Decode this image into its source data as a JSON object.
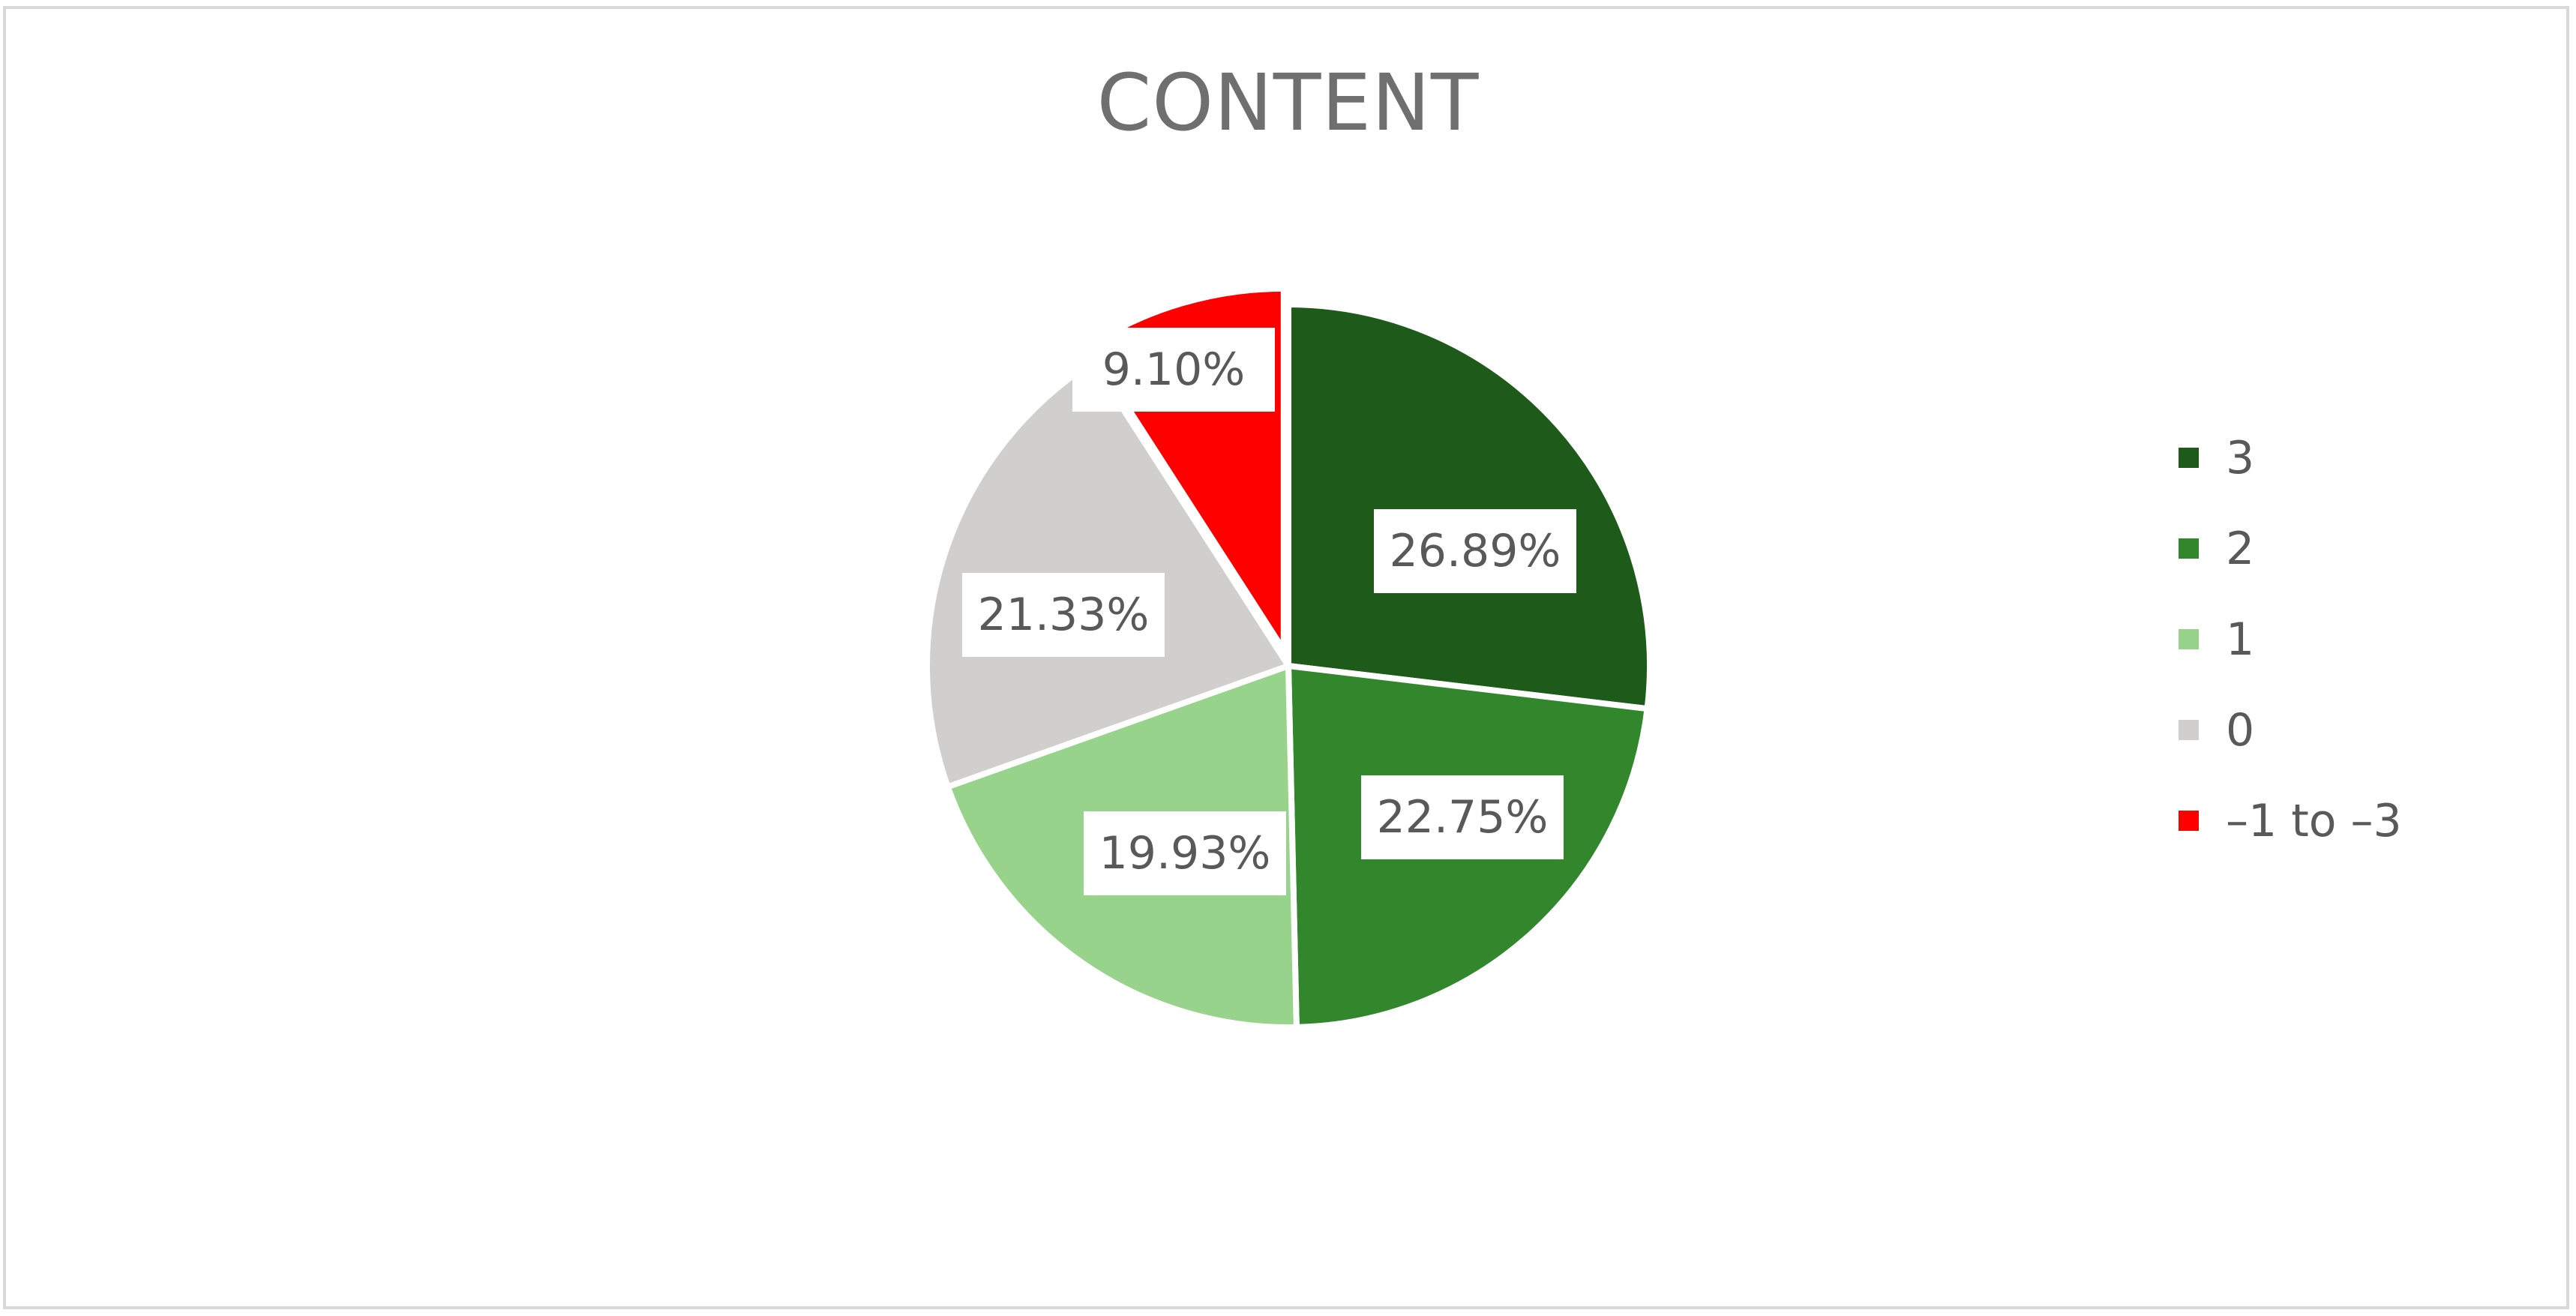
{
  "chart_data": {
    "type": "pie",
    "title": "CONTENT",
    "legend_position": "right",
    "slices": [
      {
        "name": "3",
        "value": 26.89,
        "label": "26.89%",
        "color": "#1e5b1a"
      },
      {
        "name": "2",
        "value": 22.75,
        "label": "22.75%",
        "color": "#32872d"
      },
      {
        "name": "1",
        "value": 19.93,
        "label": "19.93%",
        "color": "#98d38b"
      },
      {
        "name": "0",
        "value": 21.33,
        "label": "21.33%",
        "color": "#d0cfce"
      },
      {
        "name": "–1 to –3",
        "value": 9.1,
        "label": "9.10%",
        "color": "#ff0000",
        "exploded": true
      }
    ]
  }
}
